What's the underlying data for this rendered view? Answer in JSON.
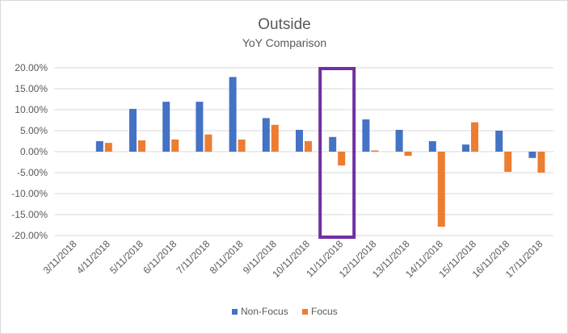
{
  "chart_data": {
    "type": "bar",
    "title": "Outside",
    "subtitle": "YoY Comparison",
    "categories": [
      "3/11/2018",
      "4/11/2018",
      "5/11/2018",
      "6/11/2018",
      "7/11/2018",
      "8/11/2018",
      "9/11/2018",
      "10/11/2018",
      "11/11/2018",
      "12/11/2018",
      "13/11/2018",
      "14/11/2018",
      "15/11/2018",
      "16/11/2018",
      "17/11/2018"
    ],
    "series": [
      {
        "name": "Non-Focus",
        "color": "#4472c4",
        "values": [
          null,
          2.5,
          10.2,
          11.9,
          11.9,
          17.8,
          8.0,
          5.2,
          3.5,
          7.7,
          5.2,
          2.5,
          1.7,
          5.0,
          -1.5
        ]
      },
      {
        "name": "Focus",
        "color": "#ed7d31",
        "values": [
          null,
          2.1,
          2.7,
          2.9,
          4.1,
          2.9,
          6.4,
          2.5,
          -3.3,
          0.3,
          -1.0,
          -17.9,
          7.0,
          -4.8,
          -5.0
        ]
      }
    ],
    "ylim": [
      -20,
      20
    ],
    "yticks": [
      "20.00%",
      "15.00%",
      "10.00%",
      "5.00%",
      "0.00%",
      "-5.00%",
      "-10.00%",
      "-15.00%",
      "-20.00%"
    ],
    "ytick_values": [
      20,
      15,
      10,
      5,
      0,
      -5,
      -10,
      -15,
      -20
    ],
    "grid": true,
    "legend": "bottom",
    "highlight": {
      "category": "11/11/2018",
      "color": "#7030a0"
    }
  }
}
